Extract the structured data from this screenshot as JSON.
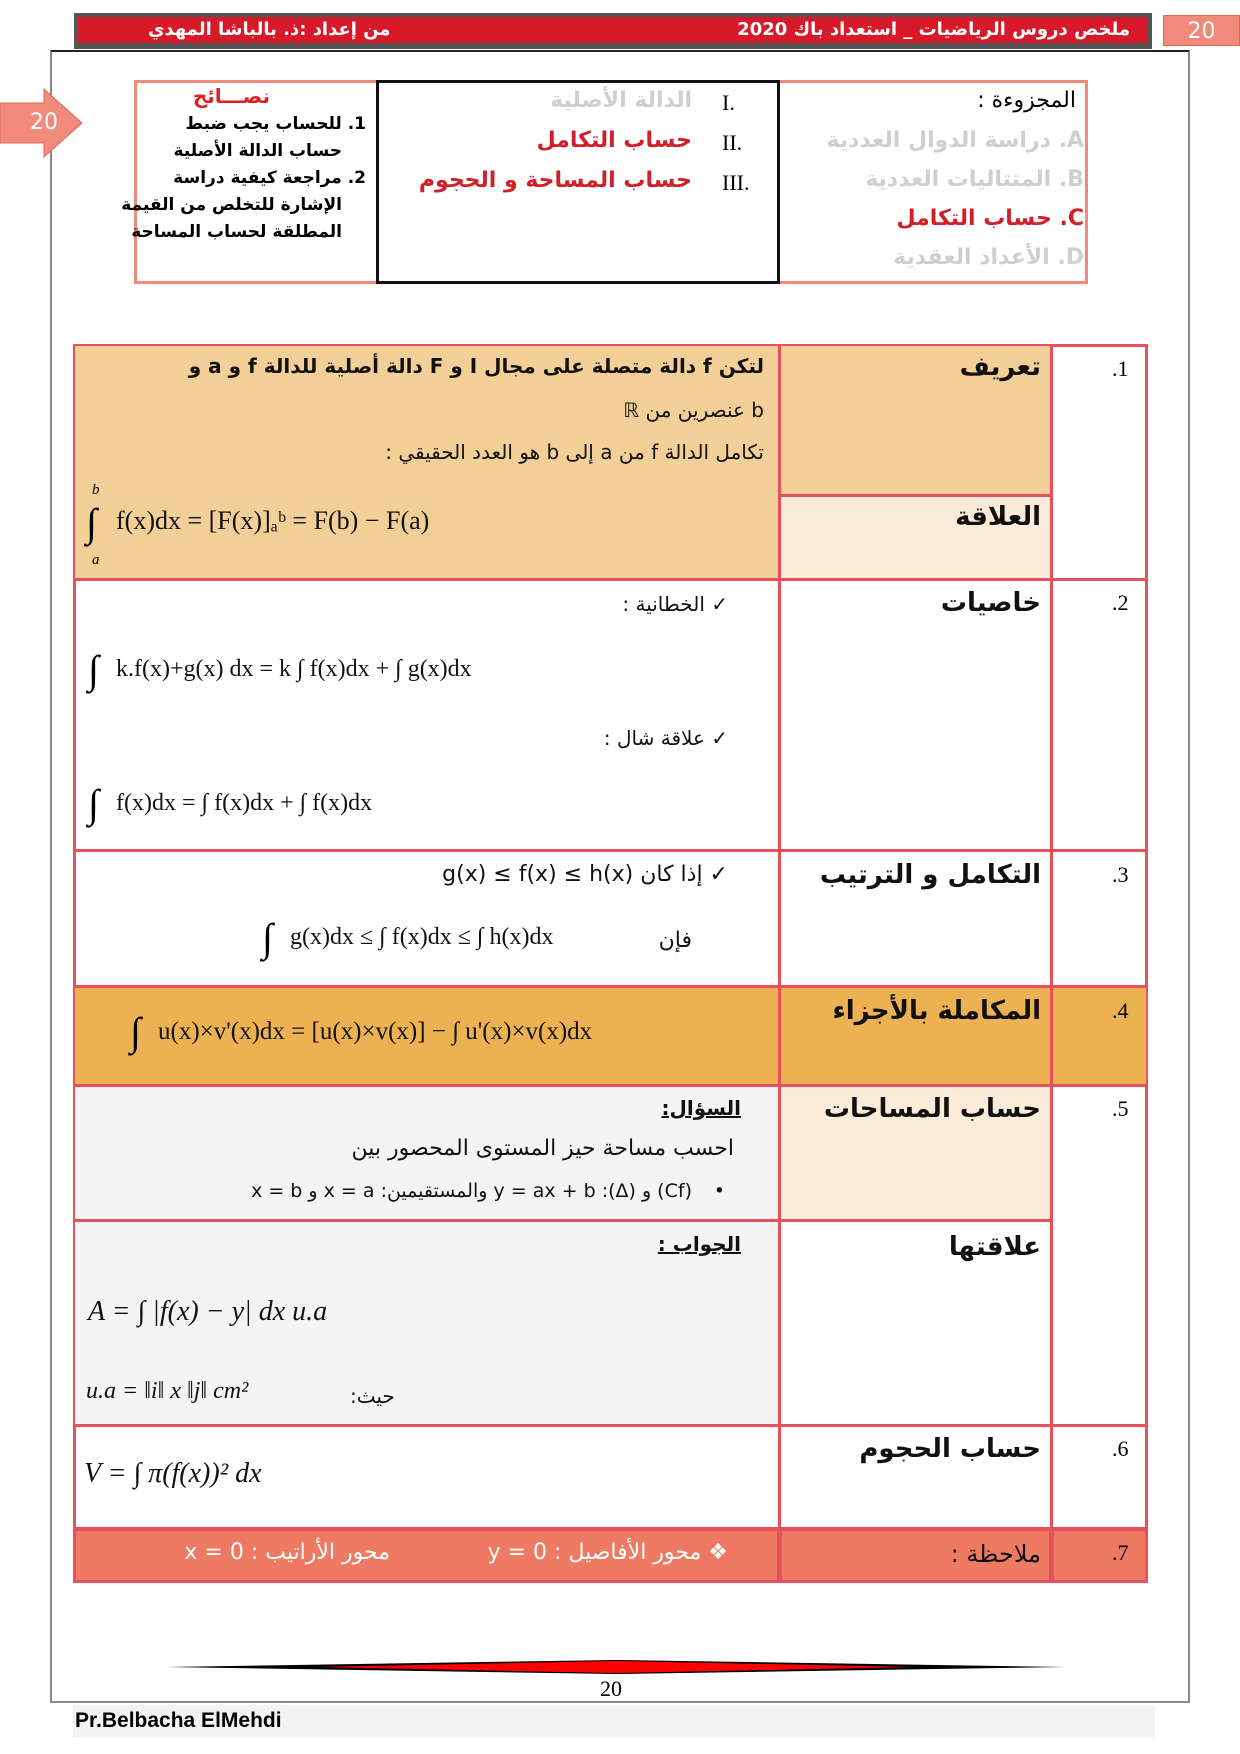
{
  "header": {
    "title": "ملخص دروس الرياضيات _ استعداد باك 2020",
    "author": "من إعداد :ذ. بالباشا المهدي",
    "page_tab": "20",
    "side_tab": "20"
  },
  "toc": {
    "part_label": "المجزوءة :",
    "parts": [
      {
        "letter": "A.",
        "title": "دراسة الدوال العددية",
        "active": false
      },
      {
        "letter": "B.",
        "title": "المتتاليات العددية",
        "active": false
      },
      {
        "letter": "C.",
        "title": "حساب التكامل",
        "active": true
      },
      {
        "letter": "D.",
        "title": "الأعداد العقدية",
        "active": false
      }
    ],
    "chapters": [
      {
        "num": "I.",
        "title": "الدالة الأصلية",
        "active": false
      },
      {
        "num": "II.",
        "title": "حساب التكامل",
        "active": true
      },
      {
        "num": "III.",
        "title": "حساب المساحة و الحجوم",
        "active": true
      }
    ],
    "tips_title": "نصـــائح",
    "tips": [
      "1. للحساب يجب ضبط",
      "حساب الدالة الأصلية",
      "2. مراجعة كيفية دراسة",
      "الإشارة للتخلص من القيمة",
      "المطلقة لحساب المساحة"
    ]
  },
  "rows": {
    "r1": {
      "num": ".1",
      "label": "تعريف",
      "label2": "العلاقة",
      "line1": "لتكن f دالة متصلة على مجال I و F دالة أصلية للدالة f و a و",
      "line2": "b عنصرين من ℝ",
      "line3": "تكامل الدالة f من a إلى b هو العدد الحقيقي :",
      "formula": "f(x)dx = [F(x)]ₐᵇ = F(b) − F(a)"
    },
    "r2": {
      "num": ".2",
      "label": "خاصيات",
      "check1": "✓ الخطانية :",
      "formula1": "k.f(x)+g(x) dx = k ∫ f(x)dx + ∫ g(x)dx",
      "check2": "✓ علاقة شال :",
      "formula2": "f(x)dx = ∫ f(x)dx + ∫ f(x)dx"
    },
    "r3": {
      "num": ".3",
      "label": "التكامل و الترتيب",
      "cond": "✓ إذا كان  g(x) ≤ f(x) ≤ h(x)",
      "then": "فإن",
      "formula": "g(x)dx ≤ ∫ f(x)dx ≤ ∫ h(x)dx"
    },
    "r4": {
      "num": ".4",
      "label": "المكاملة بالأجزاء",
      "formula": "u(x)×v'(x)dx = [u(x)×v(x)] − ∫ u'(x)×v(x)dx"
    },
    "r5": {
      "num": ".5",
      "label": "حساب المساحات",
      "label2": "علاقتها",
      "question_title": "السؤال:",
      "question": "احسب مساحة حيز المستوى المحصور بين",
      "question2": "(Cf) و (Δ): y = ax + b والمستقيمين: x = a و x = b",
      "answer_title": "الجواب :",
      "formula": "A = ∫ |f(x) − y| dx   u.a",
      "where": "حيث:",
      "unit": "u.a = ‖i‖ x ‖j‖ cm²"
    },
    "r6": {
      "num": ".6",
      "label": "حساب الحجوم",
      "formula": "V = ∫ π(f(x))² dx"
    },
    "r7": {
      "num": ".7",
      "label": "ملاحظة :",
      "note1": "❖ محور الأفاصيل : y = 0",
      "note2": "محور الأراتيب : x = 0"
    }
  },
  "footer": {
    "page": "20",
    "author": "Pr.Belbacha ElMehdi"
  },
  "colors": {
    "header_red": "#d71a2a",
    "border": "#e8505b",
    "def_bg": "#f3cf98",
    "light_bg": "#fbecd9",
    "ipp_bg": "#ecb152",
    "gray_bg": "#f4f4f4",
    "note_bg": "#ef7a63",
    "active_red": "#d0202a",
    "faded": "#cfcfcf"
  }
}
